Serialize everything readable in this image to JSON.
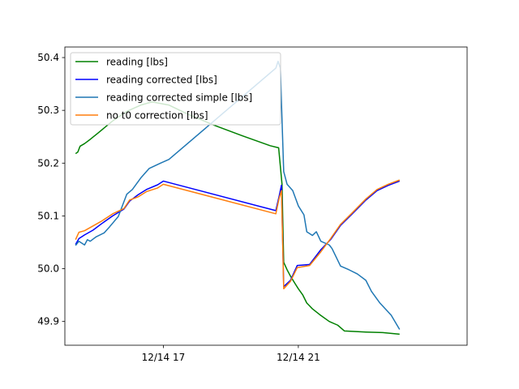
{
  "chart_data": {
    "type": "line",
    "title": "",
    "xlabel": "",
    "ylabel": "",
    "xlim": [
      "2023-12-14T14:05",
      "2024-12-15T02:00"
    ],
    "ylim": [
      49.855,
      50.42
    ],
    "x_ticks": [
      {
        "x": "12/14 17:00",
        "label": "12/14 17"
      },
      {
        "x": "12/14 21:00",
        "label": "12/14 21"
      }
    ],
    "y_ticks": [
      {
        "y": 49.9,
        "label": "49.9"
      },
      {
        "y": 50.0,
        "label": "50.0"
      },
      {
        "y": 50.1,
        "label": "50.1"
      },
      {
        "y": 50.2,
        "label": "50.2"
      },
      {
        "y": 50.3,
        "label": "50.3"
      },
      {
        "y": 50.4,
        "label": "50.4"
      }
    ],
    "grid": false,
    "legend_position": "top-left",
    "series": [
      {
        "name": "reading [lbs]",
        "color": "#008000",
        "points": [
          [
            "12/14 14:24",
            50.218
          ],
          [
            "12/14 14:28",
            50.221
          ],
          [
            "12/14 14:32",
            50.232
          ],
          [
            "12/14 14:40",
            50.237
          ],
          [
            "12/14 14:50",
            50.245
          ],
          [
            "12/14 15:05",
            50.258
          ],
          [
            "12/14 15:30",
            50.28
          ],
          [
            "12/14 15:55",
            50.298
          ],
          [
            "12/14 16:20",
            50.31
          ],
          [
            "12/14 16:40",
            50.316
          ],
          [
            "12/14 17:10",
            50.31
          ],
          [
            "12/14 17:45",
            50.292
          ],
          [
            "12/14 18:30",
            50.272
          ],
          [
            "12/14 19:20",
            50.252
          ],
          [
            "12/14 20:10",
            50.233
          ],
          [
            "12/14 20:25",
            50.229
          ],
          [
            "12/14 20:31",
            50.16
          ],
          [
            "12/14 20:34",
            50.012
          ],
          [
            "12/14 20:40",
            49.998
          ],
          [
            "12/14 20:46",
            49.986
          ],
          [
            "12/14 20:54",
            49.972
          ],
          [
            "12/14 21:00",
            49.962
          ],
          [
            "12/14 21:08",
            49.95
          ],
          [
            "12/14 21:15",
            49.935
          ],
          [
            "12/14 21:25",
            49.924
          ],
          [
            "12/14 21:38",
            49.913
          ],
          [
            "12/14 21:55",
            49.9
          ],
          [
            "12/14 22:10",
            49.893
          ],
          [
            "12/14 22:22",
            49.882
          ],
          [
            "12/14 23:00",
            49.88
          ],
          [
            "12/14 23:30",
            49.879
          ],
          [
            "12/15 00:00",
            49.876
          ]
        ]
      },
      {
        "name": "reading corrected [lbs]",
        "color": "#0000ff",
        "points": [
          [
            "12/14 14:24",
            50.046
          ],
          [
            "12/14 14:30",
            50.057
          ],
          [
            "12/14 14:40",
            50.064
          ],
          [
            "12/14 14:55",
            50.073
          ],
          [
            "12/14 15:10",
            50.085
          ],
          [
            "12/14 15:30",
            50.1
          ],
          [
            "12/14 15:50",
            50.113
          ],
          [
            "12/14 16:00",
            50.128
          ],
          [
            "12/14 16:15",
            50.14
          ],
          [
            "12/14 16:30",
            50.15
          ],
          [
            "12/14 16:50",
            50.159
          ],
          [
            "12/14 17:00",
            50.166
          ],
          [
            "12/14 20:20",
            50.11
          ],
          [
            "12/14 20:26",
            50.138
          ],
          [
            "12/14 20:30",
            50.158
          ],
          [
            "12/14 20:34",
            49.966
          ],
          [
            "12/14 20:46",
            49.978
          ],
          [
            "12/14 20:58",
            50.006
          ],
          [
            "12/14 21:20",
            50.008
          ],
          [
            "12/14 21:40",
            50.036
          ],
          [
            "12/14 21:58",
            50.056
          ],
          [
            "12/14 22:15",
            50.082
          ],
          [
            "12/14 22:35",
            50.103
          ],
          [
            "12/14 23:00",
            50.13
          ],
          [
            "12/14 23:20",
            50.148
          ],
          [
            "12/14 23:40",
            50.158
          ],
          [
            "12/15 00:00",
            50.166
          ]
        ]
      },
      {
        "name": "reading corrected simple [lbs]",
        "color": "#1f77b4",
        "points": [
          [
            "12/14 14:24",
            50.044
          ],
          [
            "12/14 14:30",
            50.052
          ],
          [
            "12/14 14:40",
            50.045
          ],
          [
            "12/14 14:45",
            50.055
          ],
          [
            "12/14 14:50",
            50.052
          ],
          [
            "12/14 15:00",
            50.06
          ],
          [
            "12/14 15:15",
            50.068
          ],
          [
            "12/14 15:25",
            50.08
          ],
          [
            "12/14 15:40",
            50.099
          ],
          [
            "12/14 15:55",
            50.141
          ],
          [
            "12/14 16:05",
            50.15
          ],
          [
            "12/14 16:20",
            50.172
          ],
          [
            "12/14 16:35",
            50.19
          ],
          [
            "12/14 16:55",
            50.2
          ],
          [
            "12/14 17:10",
            50.207
          ],
          [
            "12/14 20:20",
            50.38
          ],
          [
            "12/14 20:24",
            50.393
          ],
          [
            "12/14 20:28",
            50.38
          ],
          [
            "12/14 20:34",
            50.184
          ],
          [
            "12/14 20:40",
            50.16
          ],
          [
            "12/14 20:50",
            50.148
          ],
          [
            "12/14 21:00",
            50.119
          ],
          [
            "12/14 21:10",
            50.102
          ],
          [
            "12/14 21:15",
            50.07
          ],
          [
            "12/14 21:25",
            50.063
          ],
          [
            "12/14 21:32",
            50.07
          ],
          [
            "12/14 21:40",
            50.052
          ],
          [
            "12/14 21:55",
            50.045
          ],
          [
            "12/14 22:00",
            50.038
          ],
          [
            "12/14 22:15",
            50.005
          ],
          [
            "12/14 22:30",
            49.998
          ],
          [
            "12/14 22:45",
            49.99
          ],
          [
            "12/14 23:00",
            49.978
          ],
          [
            "12/14 23:10",
            49.957
          ],
          [
            "12/14 23:25",
            49.935
          ],
          [
            "12/14 23:45",
            49.912
          ],
          [
            "12/15 00:00",
            49.885
          ]
        ]
      },
      {
        "name": "no t0 correction [lbs]",
        "color": "#ff7f0e",
        "points": [
          [
            "12/14 14:24",
            50.055
          ],
          [
            "12/14 14:30",
            50.069
          ],
          [
            "12/14 14:40",
            50.072
          ],
          [
            "12/14 14:55",
            50.081
          ],
          [
            "12/14 15:10",
            50.09
          ],
          [
            "12/14 15:30",
            50.104
          ],
          [
            "12/14 15:50",
            50.114
          ],
          [
            "12/14 16:00",
            50.13
          ],
          [
            "12/14 16:15",
            50.136
          ],
          [
            "12/14 16:30",
            50.146
          ],
          [
            "12/14 16:50",
            50.153
          ],
          [
            "12/14 17:00",
            50.16
          ],
          [
            "12/14 20:20",
            50.104
          ],
          [
            "12/14 20:26",
            50.134
          ],
          [
            "12/14 20:30",
            50.148
          ],
          [
            "12/14 20:34",
            49.962
          ],
          [
            "12/14 20:46",
            49.976
          ],
          [
            "12/14 20:58",
            50.002
          ],
          [
            "12/14 21:20",
            50.006
          ],
          [
            "12/14 21:40",
            50.032
          ],
          [
            "12/14 21:58",
            50.058
          ],
          [
            "12/14 22:15",
            50.084
          ],
          [
            "12/14 22:35",
            50.105
          ],
          [
            "12/14 23:00",
            50.132
          ],
          [
            "12/14 23:20",
            50.15
          ],
          [
            "12/14 23:40",
            50.16
          ],
          [
            "12/15 00:00",
            50.168
          ]
        ]
      }
    ]
  }
}
